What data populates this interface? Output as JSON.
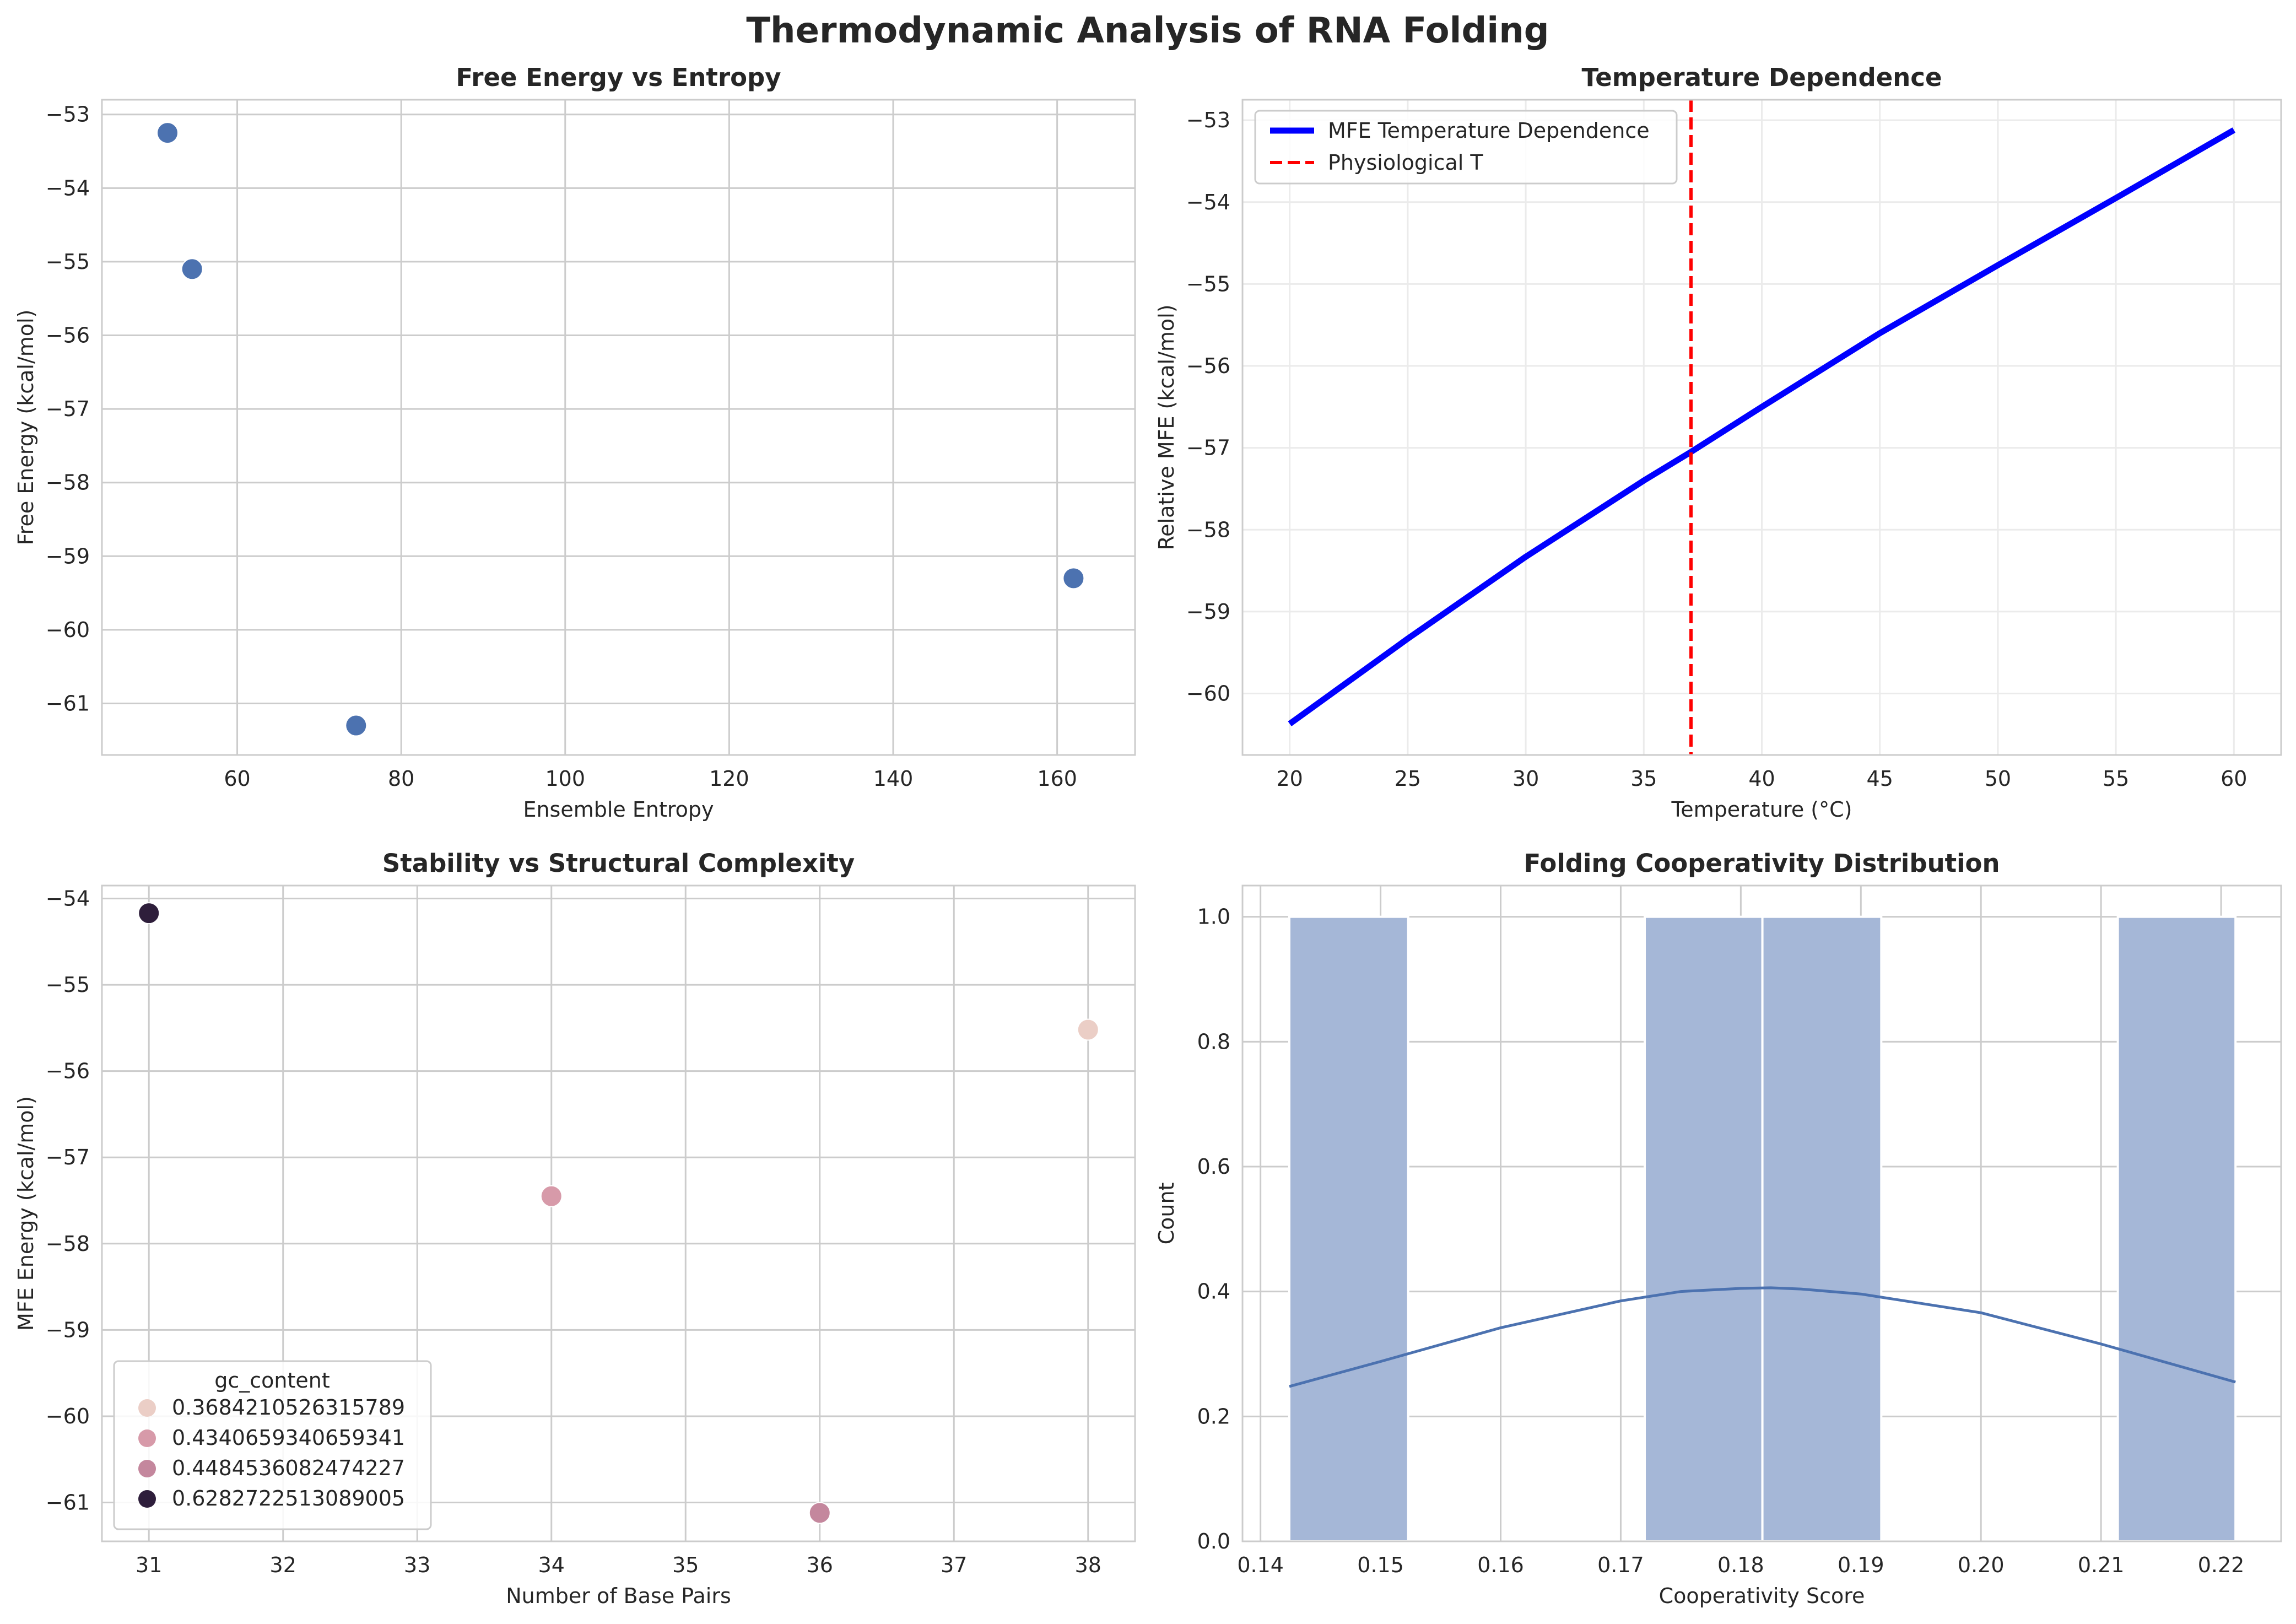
{
  "figure": {
    "suptitle": "Thermodynamic Analysis of RNA Folding"
  },
  "colors": {
    "scatter_blue": "#4c72b0",
    "line_blue": "#0000ff",
    "physio_red": "#ff0000",
    "hist_fill": "#a5b7d7",
    "kde_line": "#4c72b0",
    "hue_palette": [
      "#ebcec6",
      "#d79aa9",
      "#c4879d",
      "#2e1e3b"
    ]
  },
  "chart_data": [
    {
      "id": "free-energy-vs-entropy",
      "type": "scatter",
      "title": "Free Energy vs Entropy",
      "xlabel": "Ensemble Entropy",
      "ylabel": "Free Energy (kcal/mol)",
      "xlim": [
        43.5,
        169.5
      ],
      "ylim": [
        -61.7,
        -52.8
      ],
      "xticks": [
        60,
        80,
        100,
        120,
        140,
        160
      ],
      "yticks": [
        -61,
        -60,
        -59,
        -58,
        -57,
        -56,
        -55,
        -54,
        -53
      ],
      "grid": true,
      "points": [
        {
          "x": 51.5,
          "y": -53.25
        },
        {
          "x": 54.5,
          "y": -55.1
        },
        {
          "x": 74.5,
          "y": -61.3
        },
        {
          "x": 162.0,
          "y": -59.3
        }
      ]
    },
    {
      "id": "temperature-dependence",
      "type": "line",
      "title": "Temperature Dependence",
      "xlabel": "Temperature (°C)",
      "ylabel": "Relative MFE (kcal/mol)",
      "xlim": [
        18,
        62
      ],
      "ylim": [
        -60.75,
        -52.75
      ],
      "xticks": [
        20,
        25,
        30,
        35,
        40,
        45,
        50,
        55,
        60
      ],
      "yticks": [
        -60,
        -59,
        -58,
        -57,
        -56,
        -55,
        -54,
        -53
      ],
      "grid": true,
      "series": [
        {
          "name": "MFE Temperature Dependence",
          "x": [
            20,
            25,
            30,
            35,
            37,
            40,
            45,
            50,
            55,
            60
          ],
          "y": [
            -60.37,
            -59.33,
            -58.33,
            -57.4,
            -57.05,
            -56.5,
            -55.6,
            -54.77,
            -53.95,
            -53.12
          ]
        }
      ],
      "vline": {
        "name": "Physiological T",
        "x": 37
      },
      "legend": "top-left"
    },
    {
      "id": "stability-vs-structural-complexity",
      "type": "scatter",
      "title": "Stability vs Structural Complexity",
      "xlabel": "Number of Base Pairs",
      "ylabel": "MFE Energy (kcal/mol)",
      "xlim": [
        30.65,
        38.35
      ],
      "ylim": [
        -61.45,
        -53.85
      ],
      "xticks": [
        31,
        32,
        33,
        34,
        35,
        36,
        37,
        38
      ],
      "yticks": [
        -61,
        -60,
        -59,
        -58,
        -57,
        -56,
        -55,
        -54
      ],
      "grid": true,
      "legend_title": "gc_content",
      "legend": "bottom-left",
      "hue_levels": [
        "0.3684210526315789",
        "0.4340659340659341",
        "0.4484536082474227",
        "0.6282722513089005"
      ],
      "points": [
        {
          "x": 31,
          "y": -54.17,
          "hue": 3
        },
        {
          "x": 34,
          "y": -57.45,
          "hue": 1
        },
        {
          "x": 36,
          "y": -61.12,
          "hue": 2
        },
        {
          "x": 38,
          "y": -55.52,
          "hue": 0
        }
      ]
    },
    {
      "id": "folding-cooperativity-distribution",
      "type": "bar",
      "title": "Folding Cooperativity Distribution",
      "xlabel": "Cooperativity Score",
      "ylabel": "Count",
      "xlim": [
        0.1385,
        0.225
      ],
      "ylim": [
        0,
        1.05
      ],
      "xticks": [
        0.14,
        0.15,
        0.16,
        0.17,
        0.18,
        0.19,
        0.2,
        0.21,
        0.22
      ],
      "xtick_labels": [
        "0.14",
        "0.15",
        "0.16",
        "0.17",
        "0.18",
        "0.19",
        "0.20",
        "0.21",
        "0.22"
      ],
      "yticks": [
        0.0,
        0.2,
        0.4,
        0.6,
        0.8,
        1.0
      ],
      "ytick_labels": [
        "0.0",
        "0.2",
        "0.4",
        "0.6",
        "0.8",
        "1.0"
      ],
      "grid": true,
      "bins": [
        {
          "x0": 0.1424,
          "x1": 0.1523,
          "count": 1
        },
        {
          "x0": 0.1523,
          "x1": 0.1621,
          "count": 0
        },
        {
          "x0": 0.1621,
          "x1": 0.172,
          "count": 0
        },
        {
          "x0": 0.172,
          "x1": 0.1818,
          "count": 1
        },
        {
          "x0": 0.1818,
          "x1": 0.1917,
          "count": 1
        },
        {
          "x0": 0.1917,
          "x1": 0.2015,
          "count": 0
        },
        {
          "x0": 0.2015,
          "x1": 0.2114,
          "count": 0
        },
        {
          "x0": 0.2114,
          "x1": 0.2212,
          "count": 1
        }
      ],
      "kde": {
        "x": [
          0.1424,
          0.15,
          0.16,
          0.17,
          0.175,
          0.18,
          0.1825,
          0.185,
          0.19,
          0.2,
          0.21,
          0.2212
        ],
        "y": [
          0.248,
          0.288,
          0.342,
          0.385,
          0.4,
          0.405,
          0.406,
          0.404,
          0.396,
          0.366,
          0.316,
          0.255
        ]
      }
    }
  ]
}
